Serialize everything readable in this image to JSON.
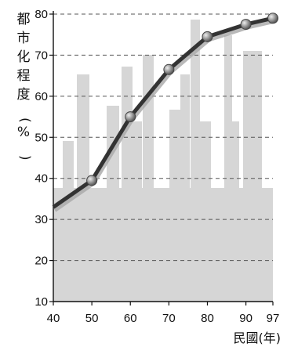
{
  "chart_data": {
    "type": "line",
    "ylabel": "都市化程度(%)",
    "xlabel": "民國(年)",
    "x": [
      40,
      50,
      60,
      70,
      80,
      90,
      97
    ],
    "y": [
      33,
      39.5,
      55,
      66.5,
      74.5,
      77.5,
      79
    ],
    "xlim": [
      40,
      97
    ],
    "ylim": [
      10,
      80
    ],
    "xticks": [
      "40",
      "50",
      "60",
      "70",
      "80",
      "90",
      "97"
    ],
    "yticks": [
      "10",
      "20",
      "30",
      "40",
      "50",
      "60",
      "70",
      "80"
    ],
    "grid": "horizontal dashed",
    "colors": {
      "line": "#333333",
      "markers": "#8c8c8c",
      "grid": "#555555",
      "background_skyline": "#d4d4d4"
    }
  }
}
